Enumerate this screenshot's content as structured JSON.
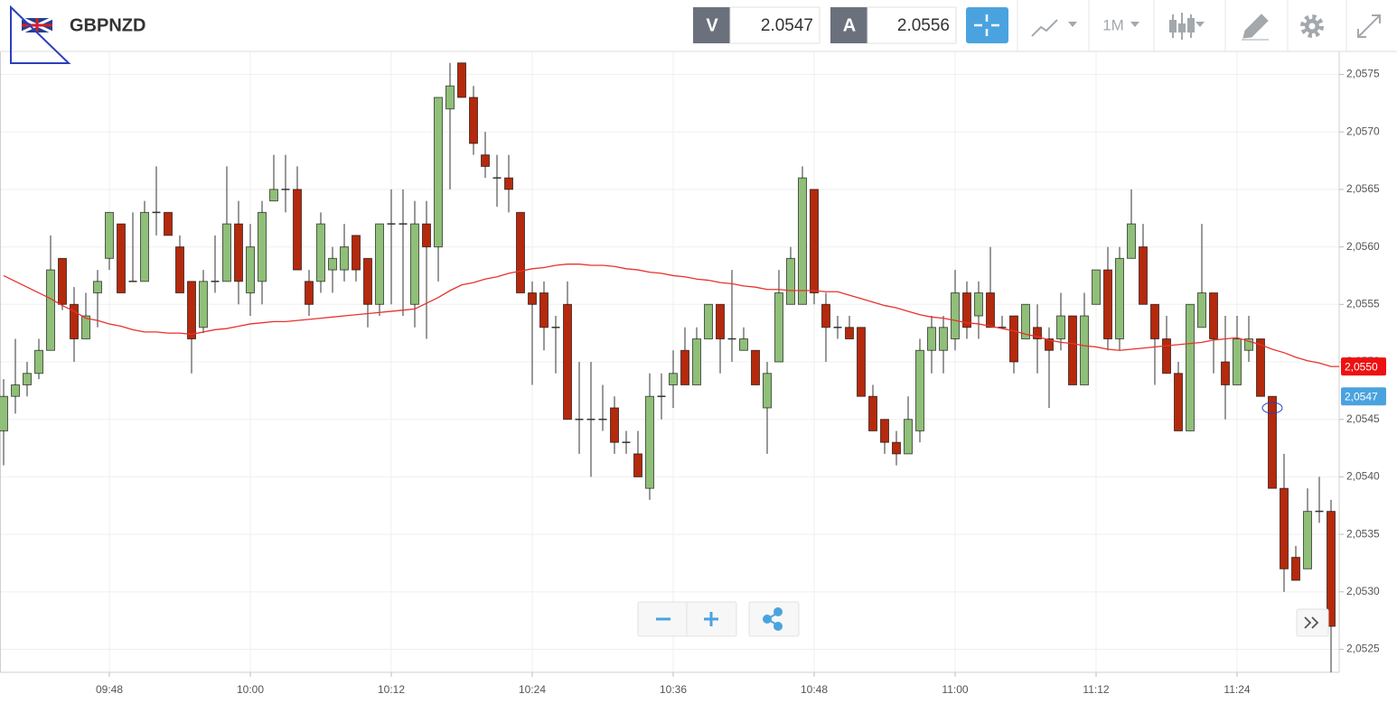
{
  "header": {
    "symbol": "GBPNZD",
    "bid_label": "V",
    "bid": 2.0547,
    "ask_label": "A",
    "ask": 2.0556,
    "timeframe": "1M"
  },
  "chart_data": {
    "type": "candlestick",
    "categories": [
      null,
      null,
      null,
      null,
      null,
      null,
      null,
      null,
      null,
      "09:48",
      null,
      null,
      null,
      null,
      null,
      null,
      null,
      null,
      null,
      null,
      null,
      "10:00",
      null,
      null,
      null,
      null,
      null,
      null,
      null,
      null,
      null,
      null,
      null,
      "10:12",
      null,
      null,
      null,
      null,
      null,
      null,
      null,
      null,
      null,
      null,
      null,
      "10:24",
      null,
      null,
      null,
      null,
      null,
      null,
      null,
      null,
      null,
      null,
      null,
      "10:36",
      null,
      null,
      null,
      null,
      null,
      null,
      null,
      null,
      null,
      null,
      null,
      "10:48",
      null,
      null,
      null,
      null,
      null,
      null,
      null,
      null,
      null,
      null,
      null,
      "11:00",
      null,
      null,
      null,
      null,
      null,
      null,
      null,
      null,
      null,
      null,
      null,
      "11:12",
      null,
      null,
      null,
      null,
      null,
      null,
      null,
      null,
      null,
      null,
      null,
      "11:24",
      null,
      null,
      null,
      null,
      null,
      null,
      null,
      null
    ],
    "open": [
      2.0544,
      2.0547,
      2.0548,
      2.0549,
      2.0551,
      2.0559,
      2.0555,
      2.0552,
      2.0556,
      2.0559,
      2.0562,
      2.0557,
      2.0557,
      2.0563,
      2.0563,
      2.056,
      2.0557,
      2.0553,
      2.0557,
      2.0557,
      2.0562,
      2.0556,
      2.0557,
      2.0564,
      2.0565,
      2.0565,
      2.0557,
      2.0557,
      2.0558,
      2.0558,
      2.0561,
      2.0559,
      2.0555,
      2.0562,
      2.0562,
      2.0555,
      2.0562,
      2.056,
      2.0572,
      2.0576,
      2.0573,
      2.0568,
      2.0566,
      2.0566,
      2.0563,
      2.0556,
      2.0556,
      2.0553,
      2.0555,
      2.0545,
      2.0545,
      2.0545,
      2.0546,
      2.0543,
      2.0542,
      2.0539,
      2.0547,
      2.0548,
      2.0551,
      2.0548,
      2.0552,
      2.0555,
      2.0552,
      2.0551,
      2.0551,
      2.0546,
      2.055,
      2.0555,
      2.0555,
      2.0565,
      2.0555,
      2.0553,
      2.0553,
      2.0553,
      2.0547,
      2.0545,
      2.0543,
      2.0542,
      2.0544,
      2.0551,
      2.0551,
      2.0552,
      2.0556,
      2.0554,
      2.0556,
      2.0553,
      2.0554,
      2.0552,
      2.0553,
      2.0552,
      2.0552,
      2.0554,
      2.0548,
      2.0555,
      2.0558,
      2.0552,
      2.0559,
      2.056,
      2.0555,
      2.0552,
      2.0549,
      2.0544,
      2.0553,
      2.0556,
      2.055,
      2.0548,
      2.0551,
      2.0552,
      2.0547,
      2.0539,
      2.0533,
      2.0532,
      2.0537,
      2.0537
    ],
    "high": [
      2.05485,
      2.0552,
      2.055,
      2.0552,
      2.0561,
      2.0559,
      2.05565,
      2.0556,
      2.0558,
      2.0563,
      2.0562,
      2.0563,
      2.0564,
      2.0567,
      2.0563,
      2.0561,
      2.0557,
      2.0558,
      2.0561,
      2.0567,
      2.0564,
      2.0562,
      2.0564,
      2.0568,
      2.0568,
      2.0567,
      2.0558,
      2.0563,
      2.056,
      2.0562,
      2.0561,
      2.0559,
      2.0562,
      2.0565,
      2.0565,
      2.0564,
      2.0564,
      2.0573,
      2.0576,
      2.0576,
      2.0574,
      2.057,
      2.0568,
      2.0568,
      2.0563,
      2.0557,
      2.0557,
      2.0554,
      2.0557,
      2.055,
      2.055,
      2.0548,
      2.0547,
      2.0544,
      2.0544,
      2.0549,
      2.0549,
      2.0551,
      2.0553,
      2.0553,
      2.0555,
      2.0555,
      2.0558,
      2.0553,
      2.0551,
      2.055,
      2.0558,
      2.056,
      2.0567,
      2.0565,
      2.0556,
      2.0554,
      2.0554,
      2.0553,
      2.0548,
      2.0545,
      2.0544,
      2.0547,
      2.0552,
      2.0554,
      2.0554,
      2.0558,
      2.0557,
      2.0557,
      2.056,
      2.0554,
      2.0554,
      2.0555,
      2.0555,
      2.0553,
      2.0556,
      2.0554,
      2.0556,
      2.0558,
      2.056,
      2.056,
      2.0565,
      2.0562,
      2.0555,
      2.0554,
      2.055,
      2.0555,
      2.0562,
      2.0556,
      2.0554,
      2.0554,
      2.0554,
      2.0552,
      2.0547,
      2.0542,
      2.0534,
      2.0539,
      2.054,
      2.0538
    ],
    "low": [
      2.0541,
      2.05455,
      2.0547,
      2.05485,
      2.0551,
      2.05545,
      2.055,
      2.0552,
      2.0553,
      2.0558,
      2.0556,
      2.0557,
      2.0557,
      2.0561,
      2.0561,
      2.0556,
      2.0549,
      2.05525,
      2.0556,
      2.0557,
      2.0555,
      2.0554,
      2.0555,
      2.0564,
      2.0563,
      2.0558,
      2.0554,
      2.0556,
      2.0556,
      2.0557,
      2.0557,
      2.0553,
      2.0554,
      2.0555,
      2.0554,
      2.0553,
      2.0552,
      2.0557,
      2.0565,
      2.0573,
      2.0568,
      2.0566,
      2.05635,
      2.0563,
      2.0556,
      2.0548,
      2.0551,
      2.0549,
      2.0545,
      2.0542,
      2.054,
      2.0544,
      2.0542,
      2.0542,
      2.054,
      2.0538,
      2.0545,
      2.0546,
      2.0548,
      2.0548,
      2.0552,
      2.0549,
      2.055,
      2.0551,
      2.0548,
      2.0542,
      2.055,
      2.0555,
      2.0555,
      2.0555,
      2.055,
      2.0552,
      2.0552,
      2.0547,
      2.0544,
      2.0542,
      2.0541,
      2.0542,
      2.0543,
      2.0549,
      2.0549,
      2.0551,
      2.0552,
      2.0552,
      2.0553,
      2.0553,
      2.0549,
      2.0552,
      2.0549,
      2.0546,
      2.0551,
      2.0548,
      2.0548,
      2.0555,
      2.0551,
      2.0551,
      2.0559,
      2.0555,
      2.0548,
      2.0549,
      2.0544,
      2.0544,
      2.0553,
      2.0549,
      2.0545,
      2.0548,
      2.055,
      2.0547,
      2.0539,
      2.053,
      2.0531,
      2.0532,
      2.0536,
      2.0523
    ],
    "close": [
      2.0547,
      2.0548,
      2.0549,
      2.0551,
      2.0558,
      2.0555,
      2.0552,
      2.0554,
      2.0557,
      2.0563,
      2.0556,
      2.0557,
      2.0563,
      2.0563,
      2.0561,
      2.0556,
      2.0552,
      2.0557,
      2.0557,
      2.0562,
      2.0557,
      2.056,
      2.0563,
      2.0565,
      2.0565,
      2.0558,
      2.0555,
      2.0562,
      2.0559,
      2.056,
      2.0558,
      2.0555,
      2.0562,
      2.0562,
      2.0562,
      2.0562,
      2.056,
      2.0573,
      2.0574,
      2.0573,
      2.0569,
      2.0567,
      2.0566,
      2.0565,
      2.0556,
      2.0555,
      2.0553,
      2.0553,
      2.0545,
      2.0545,
      2.0545,
      2.0545,
      2.0543,
      2.0543,
      2.054,
      2.0547,
      2.0547,
      2.0549,
      2.0548,
      2.0552,
      2.0555,
      2.0552,
      2.0552,
      2.0552,
      2.0548,
      2.0549,
      2.0556,
      2.0559,
      2.0566,
      2.0556,
      2.0553,
      2.0553,
      2.0552,
      2.0547,
      2.0544,
      2.0543,
      2.0542,
      2.0545,
      2.0551,
      2.0553,
      2.0553,
      2.0556,
      2.0553,
      2.0556,
      2.0553,
      2.0553,
      2.055,
      2.0555,
      2.0552,
      2.0551,
      2.0554,
      2.0548,
      2.0554,
      2.0558,
      2.0552,
      2.0559,
      2.0562,
      2.0555,
      2.0552,
      2.0549,
      2.0544,
      2.0555,
      2.0556,
      2.0552,
      2.0548,
      2.0552,
      2.0552,
      2.0547,
      2.0539,
      2.0532,
      2.0531,
      2.0537,
      2.0537,
      2.0527
    ],
    "up_color": "#8fbf78",
    "down_color": "#b5290d",
    "ma": {
      "color": "#e8322b",
      "values": [
        2.05575,
        2.0557,
        2.05565,
        2.0556,
        2.05555,
        2.05549,
        2.05544,
        2.05538,
        2.05536,
        2.05533,
        2.05531,
        2.05528,
        2.05526,
        2.05526,
        2.05525,
        2.05525,
        2.05524,
        2.05526,
        2.05528,
        2.05529,
        2.05531,
        2.05533,
        2.05534,
        2.05535,
        2.05535,
        2.05536,
        2.05537,
        2.05538,
        2.05539,
        2.0554,
        2.05541,
        2.05542,
        2.05543,
        2.05544,
        2.05545,
        2.05546,
        2.05551,
        2.05556,
        2.05562,
        2.05567,
        2.05569,
        2.05572,
        2.05574,
        2.05577,
        2.05579,
        2.05581,
        2.05582,
        2.05584,
        2.05585,
        2.05585,
        2.05584,
        2.05584,
        2.05583,
        2.05581,
        2.0558,
        2.05578,
        2.05577,
        2.05575,
        2.05574,
        2.05572,
        2.05571,
        2.05569,
        2.05568,
        2.05566,
        2.05565,
        2.05563,
        2.05563,
        2.05562,
        2.05562,
        2.05562,
        2.05561,
        2.05561,
        2.05558,
        2.05555,
        2.05552,
        2.05549,
        2.05547,
        2.05544,
        2.05541,
        2.05539,
        2.05538,
        2.05536,
        2.05534,
        2.05533,
        2.05531,
        2.05529,
        2.05527,
        2.05524,
        2.05522,
        2.05519,
        2.05517,
        2.05516,
        2.05514,
        2.05513,
        2.05511,
        2.0551,
        2.05511,
        2.05512,
        2.05513,
        2.05514,
        2.05515,
        2.05516,
        2.05517,
        2.05519,
        2.0552,
        2.05521,
        2.05518,
        2.05515,
        2.05511,
        2.05508,
        2.05504,
        2.05501,
        2.05499,
        2.05496
      ]
    },
    "ylim": [
      2.0523,
      2.0577
    ],
    "yticks": [
      {
        "value": 2.0525,
        "label": "2,0525"
      },
      {
        "value": 2.053,
        "label": "2,0530"
      },
      {
        "value": 2.0535,
        "label": "2,0535"
      },
      {
        "value": 2.054,
        "label": "2,0540"
      },
      {
        "value": 2.0545,
        "label": "2,0545"
      },
      {
        "value": 2.055,
        "label": "2,0550"
      },
      {
        "value": 2.0555,
        "label": "2,0555"
      },
      {
        "value": 2.056,
        "label": "2,0560"
      },
      {
        "value": 2.0565,
        "label": "2,0565"
      },
      {
        "value": 2.057,
        "label": "2,0570"
      },
      {
        "value": 2.0575,
        "label": "2,0575"
      }
    ],
    "grid": true,
    "price_tags": [
      {
        "value": 2.05496,
        "label": "2,0550",
        "color": "#ee1111"
      },
      {
        "value": 2.0547,
        "label": "2,0547",
        "color": "#4aa3df"
      }
    ]
  }
}
